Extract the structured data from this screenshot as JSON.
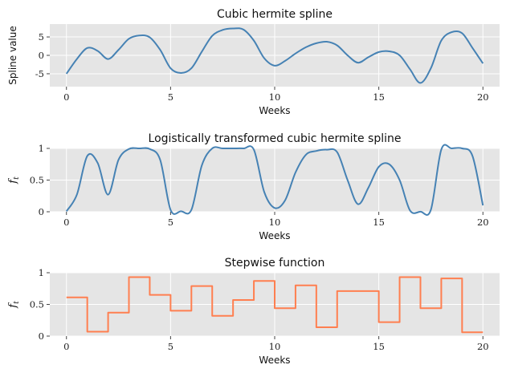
{
  "colors": {
    "blue": "#4682b4",
    "orange": "#ff7f50",
    "panel_bg": "#e5e5e5",
    "grid": "#ffffff"
  },
  "chart_data": [
    {
      "type": "line",
      "title": "Cubic hermite spline",
      "xlabel": "Weeks",
      "ylabel": "Spline value",
      "xlim": [
        -0.8,
        20.8
      ],
      "ylim": [
        -8.5,
        8.5
      ],
      "xticks": [
        0,
        5,
        10,
        15,
        20
      ],
      "yticks": [
        -5,
        0,
        5
      ],
      "grid": true,
      "series": [
        {
          "color": "#4682b4",
          "x": [
            0,
            0.5,
            1,
            1.5,
            2,
            2.5,
            3,
            3.5,
            4,
            4.5,
            5,
            5.5,
            6,
            6.5,
            7,
            7.5,
            8,
            8.5,
            9,
            9.5,
            10,
            10.5,
            11,
            11.5,
            12,
            12.5,
            13,
            13.5,
            14,
            14.5,
            15,
            15.5,
            16,
            16.5,
            17,
            17.5,
            18,
            18.5,
            19,
            19.5,
            20
          ],
          "y": [
            -5.0,
            -1.0,
            2.0,
            1.2,
            -1.0,
            1.5,
            4.5,
            5.4,
            4.9,
            1.5,
            -3.5,
            -4.8,
            -3.5,
            1.0,
            5.3,
            6.9,
            7.3,
            7.0,
            4.0,
            -0.8,
            -2.8,
            -1.5,
            0.5,
            2.2,
            3.3,
            3.7,
            2.7,
            0.0,
            -2.0,
            -0.5,
            0.9,
            1.1,
            0.0,
            -3.8,
            -7.5,
            -3.5,
            4.0,
            6.3,
            6.0,
            2.0,
            -2.2
          ]
        }
      ]
    },
    {
      "type": "line",
      "title": "Logistically transformed cubic hermite spline",
      "xlabel": "Weeks",
      "ylabel": "f_t",
      "ylabel_display": "ft",
      "xlim": [
        -0.8,
        20.8
      ],
      "ylim": [
        0,
        1.0
      ],
      "xticks": [
        0,
        5,
        10,
        15,
        20
      ],
      "yticks": [
        0.0,
        0.5,
        1.0
      ],
      "grid": true,
      "series": [
        {
          "color": "#4682b4",
          "x": [
            0,
            0.5,
            1,
            1.5,
            2,
            2.5,
            3,
            3.5,
            4,
            4.5,
            5,
            5.5,
            6,
            6.5,
            7,
            7.5,
            8,
            8.5,
            9,
            9.5,
            10,
            10.5,
            11,
            11.5,
            12,
            12.5,
            13,
            13.5,
            14,
            14.5,
            15,
            15.5,
            16,
            16.5,
            17,
            17.5,
            18,
            18.5,
            19,
            19.5,
            20
          ],
          "y": [
            0.007,
            0.27,
            0.88,
            0.77,
            0.27,
            0.82,
            0.99,
            1.0,
            0.99,
            0.82,
            0.03,
            0.008,
            0.03,
            0.73,
            1.0,
            1.0,
            1.0,
            1.0,
            0.98,
            0.31,
            0.06,
            0.18,
            0.62,
            0.9,
            0.96,
            0.98,
            0.94,
            0.5,
            0.12,
            0.38,
            0.71,
            0.75,
            0.5,
            0.02,
            0.001,
            0.03,
            0.98,
            1.0,
            1.0,
            0.88,
            0.1
          ]
        }
      ]
    },
    {
      "type": "line",
      "step": "post",
      "title": "Stepwise function",
      "xlabel": "Weeks",
      "ylabel": "f_t",
      "ylabel_display": "ft",
      "xlim": [
        -0.8,
        20.8
      ],
      "ylim": [
        0,
        1.0
      ],
      "xticks": [
        0,
        5,
        10,
        15,
        20
      ],
      "yticks": [
        0.0,
        0.5,
        1.0
      ],
      "grid": true,
      "series": [
        {
          "color": "#ff7f50",
          "x": [
            0,
            1,
            2,
            3,
            4,
            5,
            6,
            7,
            8,
            9,
            10,
            11,
            12,
            13,
            14,
            15,
            16,
            17,
            18,
            19,
            20
          ],
          "y": [
            0.61,
            0.07,
            0.37,
            0.93,
            0.65,
            0.4,
            0.79,
            0.32,
            0.57,
            0.87,
            0.44,
            0.8,
            0.14,
            0.71,
            0.71,
            0.22,
            0.93,
            0.44,
            0.91,
            0.06,
            0.06
          ]
        }
      ]
    }
  ]
}
